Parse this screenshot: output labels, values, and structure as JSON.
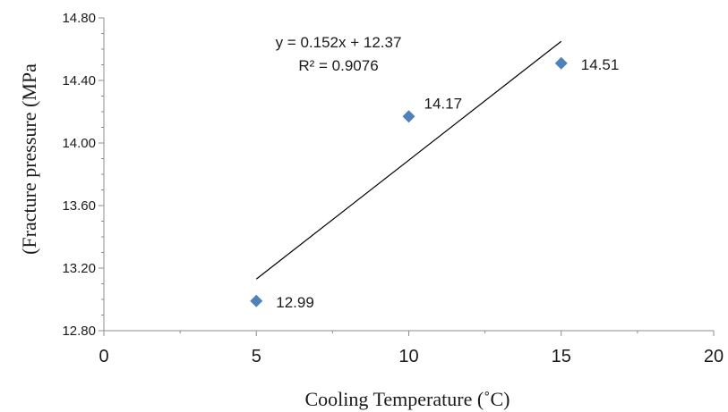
{
  "chart_data": {
    "type": "scatter",
    "xlabel": "Cooling Temperature (˚C)",
    "ylabel": "(Fracture pressure (MPa",
    "xlim": [
      0,
      20
    ],
    "ylim": [
      12.8,
      14.8
    ],
    "x_ticks": [
      0,
      5,
      10,
      15,
      20
    ],
    "x_tick_labels": [
      "0",
      "5",
      "10",
      "15",
      "20"
    ],
    "y_ticks": [
      12.8,
      13.2,
      13.6,
      14.0,
      14.4,
      14.8
    ],
    "y_tick_labels": [
      "12.80",
      "13.20",
      "13.60",
      "14.00",
      "14.40",
      "14.80"
    ],
    "grid": false,
    "marker": "diamond",
    "marker_color": "#4F81BD",
    "points": [
      {
        "x": 5,
        "y": 12.99,
        "label": "12.99"
      },
      {
        "x": 10,
        "y": 14.17,
        "label": "14.17"
      },
      {
        "x": 15,
        "y": 14.51,
        "label": "14.51"
      }
    ],
    "trendline": {
      "type": "linear",
      "slope": 0.152,
      "intercept": 12.37,
      "x_range": [
        5,
        15
      ],
      "equation": "y = 0.152x + 12.37",
      "r_squared": "R² = 0.9076"
    }
  }
}
